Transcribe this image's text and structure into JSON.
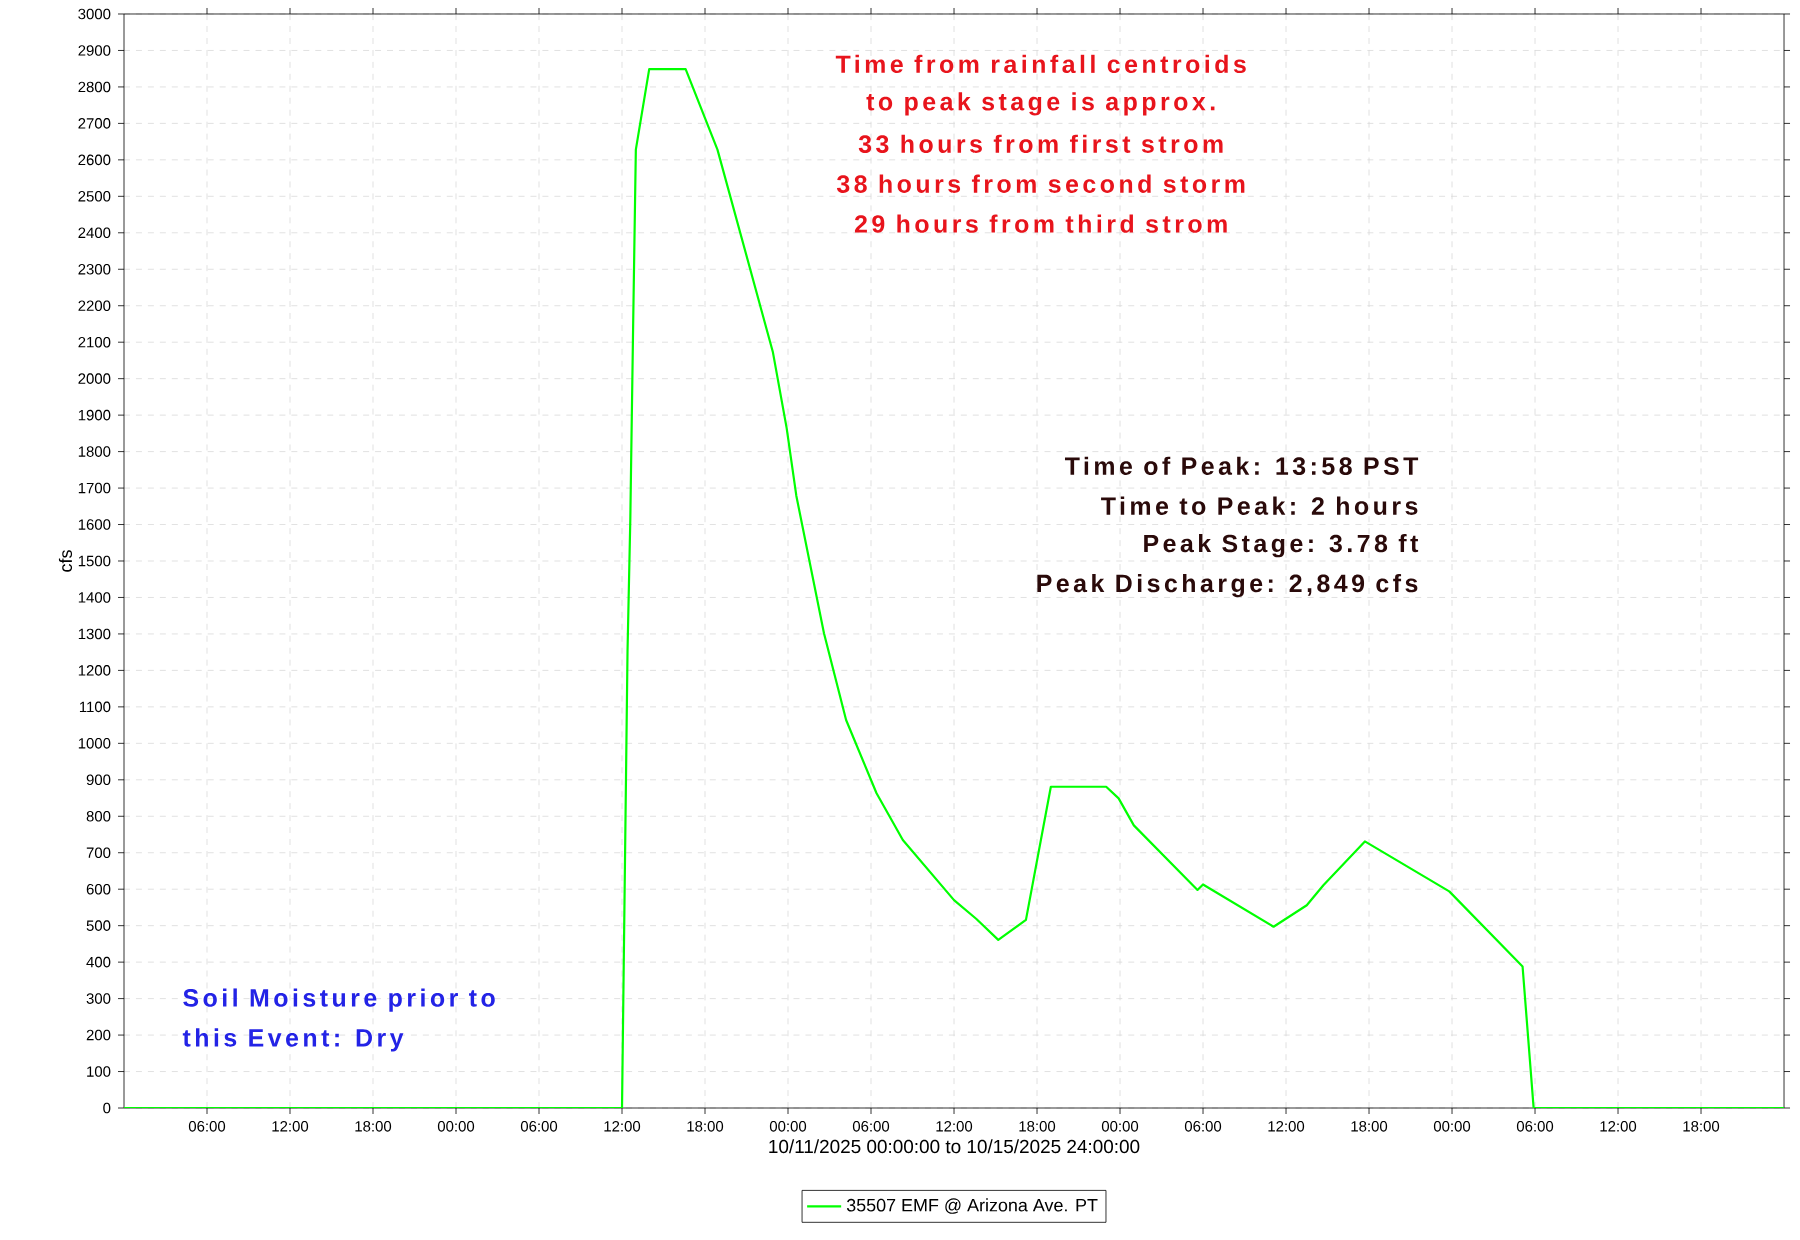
{
  "chart_data": {
    "type": "line",
    "xlabel": "10/11/2025 00:00:00 to 10/15/2025 24:00:00",
    "ylabel": "cfs",
    "xlim": [
      "2025-10-11T00:00",
      "2025-10-16T00:00"
    ],
    "ylim": [
      0,
      3000
    ],
    "xticks": [
      {
        "value": "2025-10-11T06:00",
        "label": "06:00"
      },
      {
        "value": "2025-10-11T12:00",
        "label": "12:00"
      },
      {
        "value": "2025-10-11T18:00",
        "label": "18:00"
      },
      {
        "value": "2025-10-12T00:00",
        "label": "00:00"
      },
      {
        "value": "2025-10-12T06:00",
        "label": "06:00"
      },
      {
        "value": "2025-10-12T12:00",
        "label": "12:00"
      },
      {
        "value": "2025-10-12T18:00",
        "label": "18:00"
      },
      {
        "value": "2025-10-13T00:00",
        "label": "00:00"
      },
      {
        "value": "2025-10-13T06:00",
        "label": "06:00"
      },
      {
        "value": "2025-10-13T12:00",
        "label": "12:00"
      },
      {
        "value": "2025-10-13T18:00",
        "label": "18:00"
      },
      {
        "value": "2025-10-14T00:00",
        "label": "00:00"
      },
      {
        "value": "2025-10-14T06:00",
        "label": "06:00"
      },
      {
        "value": "2025-10-14T12:00",
        "label": "12:00"
      },
      {
        "value": "2025-10-14T18:00",
        "label": "18:00"
      },
      {
        "value": "2025-10-15T00:00",
        "label": "00:00"
      },
      {
        "value": "2025-10-15T06:00",
        "label": "06:00"
      },
      {
        "value": "2025-10-15T12:00",
        "label": "12:00"
      },
      {
        "value": "2025-10-15T18:00",
        "label": "18:00"
      }
    ],
    "yticks": [
      0,
      100,
      200,
      300,
      400,
      500,
      600,
      700,
      800,
      900,
      1000,
      1100,
      1200,
      1300,
      1400,
      1500,
      1600,
      1700,
      1800,
      1900,
      2000,
      2100,
      2200,
      2300,
      2400,
      2500,
      2600,
      2700,
      2800,
      2900,
      3000
    ],
    "grid": true,
    "legend": "bottom",
    "marker": "none",
    "line_style": "solid",
    "series": [
      {
        "name": "35507 EMF @ Arizona Ave. PT",
        "color": "#00ff00",
        "x": [
          "2025-10-11T00:00",
          "2025-10-12T12:00",
          "2025-10-12T12:24",
          "2025-10-12T12:36",
          "2025-10-12T12:48",
          "2025-10-12T13:00",
          "2025-10-12T13:58",
          "2025-10-12T16:36",
          "2025-10-12T18:54",
          "2025-10-12T22:54",
          "2025-10-12T23:54",
          "2025-10-13T00:36",
          "2025-10-13T02:36",
          "2025-10-13T04:12",
          "2025-10-13T06:24",
          "2025-10-13T08:18",
          "2025-10-13T12:00",
          "2025-10-13T13:36",
          "2025-10-13T15:12",
          "2025-10-13T17:12",
          "2025-10-13T19:00",
          "2025-10-13T23:00",
          "2025-10-13T23:54",
          "2025-10-14T01:00",
          "2025-10-14T05:36",
          "2025-10-14T06:00",
          "2025-10-14T11:06",
          "2025-10-14T13:30",
          "2025-10-14T14:42",
          "2025-10-14T17:42",
          "2025-10-14T23:48",
          "2025-10-15T05:06",
          "2025-10-15T05:54",
          "2025-10-16T00:00"
        ],
        "values": [
          0,
          0,
          1256,
          1613,
          2134,
          2628,
          2849,
          2849,
          2628,
          2074,
          1865,
          1679,
          1302,
          1064,
          863,
          735,
          570,
          519,
          461,
          516,
          881,
          881,
          849,
          775,
          598,
          613,
          497,
          556,
          611,
          731,
          594,
          388,
          0,
          0
        ]
      }
    ],
    "annotations": [
      "Time from rainfall centroids",
      "to peak stage is approx.",
      "33 hours from first strom",
      "38 hours from second storm",
      "29 hours from third strom",
      "Time of Peak: 13:58 PST",
      "Time to Peak: 2 hours",
      "Peak Stage: 3.78 ft",
      "Peak Discharge: 2,849 cfs",
      "Soil Moisture prior to",
      "this Event: Dry"
    ]
  }
}
